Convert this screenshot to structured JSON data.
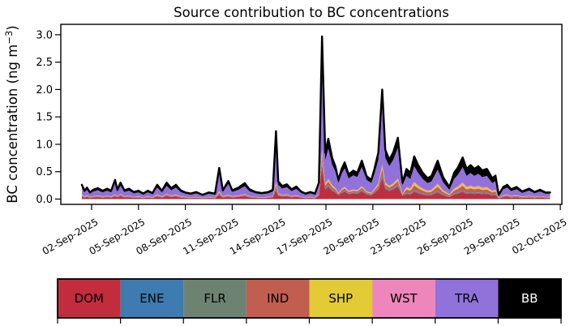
{
  "title": "Source contribution to BC concentrations",
  "axes": {
    "ylabel_pre": "BC concentration (ng m",
    "ylabel_sup": "−3",
    "ylabel_post": ")",
    "yticks": {
      "values": [
        0,
        0.5,
        1.0,
        1.5,
        2.0,
        2.5,
        3.0
      ],
      "labels": [
        "0.0",
        "0.5",
        "1.0",
        "1.5",
        "2.0",
        "2.5",
        "3.0"
      ]
    },
    "xticks": {
      "values": [
        2,
        5,
        8,
        11,
        14,
        17,
        20,
        23,
        26,
        29,
        32
      ],
      "labels": [
        "02-Sep-2025",
        "05-Sep-2025",
        "08-Sep-2025",
        "11-Sep-2025",
        "14-Sep-2025",
        "17-Sep-2025",
        "20-Sep-2025",
        "23-Sep-2025",
        "26-Sep-2025",
        "29-Sep-2025",
        "02-Oct-2025"
      ]
    }
  },
  "legend": {
    "items": [
      {
        "label": "DOM",
        "color": "#c22d3e",
        "text_color": "#000000"
      },
      {
        "label": "ENE",
        "color": "#3d7bb0",
        "text_color": "#000000"
      },
      {
        "label": "FLR",
        "color": "#6e8272",
        "text_color": "#000000"
      },
      {
        "label": "IND",
        "color": "#c25e50",
        "text_color": "#000000"
      },
      {
        "label": "SHP",
        "color": "#e2cb35",
        "text_color": "#000000"
      },
      {
        "label": "WST",
        "color": "#ef86bb",
        "text_color": "#000000"
      },
      {
        "label": "TRA",
        "color": "#9171da",
        "text_color": "#000000"
      },
      {
        "label": "BB",
        "color": "#000000",
        "text_color": "#ffffff"
      }
    ]
  },
  "chart_data": {
    "type": "area",
    "stacked": true,
    "title": "Source contribution to BC concentrations",
    "xlabel": "",
    "ylabel": "BC concentration (ng m−3)",
    "x_unit": "day number, 1 = 01-Sep-2025, 32 = 02-Oct-2025",
    "y_unit": "ng m-3",
    "xlim": [
      0.03,
      32.1
    ],
    "ylim": [
      -0.096,
      3.19
    ],
    "grid": false,
    "legend_position": "below, horizontal color strip",
    "series": [
      {
        "name": "DOM",
        "color": "#c22d3e"
      },
      {
        "name": "ENE",
        "color": "#3d7bb0"
      },
      {
        "name": "FLR",
        "color": "#6e8272"
      },
      {
        "name": "IND",
        "color": "#c25e50"
      },
      {
        "name": "SHP",
        "color": "#e2cb35"
      },
      {
        "name": "WST",
        "color": "#ef86bb"
      },
      {
        "name": "TRA",
        "color": "#9171da"
      },
      {
        "name": "BB",
        "color": "#000000"
      }
    ],
    "points_format": "[x_day, DOM, ENE, FLR, IND, SHP, WST, TRA, BB] (stacked bottom to top, values in ng m-3)",
    "points": [
      [
        1.38,
        0.047,
        0.008,
        0.003,
        0.014,
        0.008,
        0.005,
        0.127,
        0.049
      ],
      [
        1.55,
        0.027,
        0.005,
        0.002,
        0.008,
        0.005,
        0.003,
        0.073,
        0.029
      ],
      [
        1.7,
        0.038,
        0.006,
        0.002,
        0.012,
        0.006,
        0.004,
        0.102,
        0.04
      ],
      [
        1.9,
        0.022,
        0.004,
        0.001,
        0.007,
        0.004,
        0.002,
        0.058,
        0.023
      ],
      [
        2.1,
        0.031,
        0.005,
        0.002,
        0.009,
        0.005,
        0.003,
        0.083,
        0.032
      ],
      [
        2.4,
        0.036,
        0.006,
        0.002,
        0.011,
        0.006,
        0.004,
        0.097,
        0.038
      ],
      [
        2.7,
        0.027,
        0.005,
        0.002,
        0.008,
        0.005,
        0.003,
        0.073,
        0.029
      ],
      [
        3.0,
        0.034,
        0.006,
        0.002,
        0.01,
        0.006,
        0.003,
        0.093,
        0.036
      ],
      [
        3.25,
        0.027,
        0.005,
        0.002,
        0.008,
        0.005,
        0.003,
        0.073,
        0.029
      ],
      [
        3.5,
        0.046,
        0.009,
        0.003,
        0.016,
        0.009,
        0.005,
        0.205,
        0.058
      ],
      [
        3.65,
        0.031,
        0.005,
        0.002,
        0.009,
        0.005,
        0.003,
        0.083,
        0.032
      ],
      [
        3.85,
        0.054,
        0.009,
        0.003,
        0.017,
        0.009,
        0.005,
        0.146,
        0.057
      ],
      [
        4.1,
        0.029,
        0.005,
        0.002,
        0.009,
        0.005,
        0.003,
        0.078,
        0.03
      ],
      [
        4.4,
        0.034,
        0.006,
        0.002,
        0.01,
        0.006,
        0.003,
        0.093,
        0.036
      ],
      [
        4.7,
        0.023,
        0.004,
        0.001,
        0.007,
        0.004,
        0.002,
        0.063,
        0.025
      ],
      [
        5.0,
        0.027,
        0.005,
        0.002,
        0.008,
        0.005,
        0.003,
        0.073,
        0.029
      ],
      [
        5.3,
        0.018,
        0.003,
        0.001,
        0.006,
        0.003,
        0.002,
        0.049,
        0.019
      ],
      [
        5.6,
        0.027,
        0.005,
        0.002,
        0.008,
        0.005,
        0.003,
        0.073,
        0.029
      ],
      [
        5.9,
        0.02,
        0.003,
        0.001,
        0.006,
        0.003,
        0.002,
        0.054,
        0.021
      ],
      [
        6.2,
        0.047,
        0.008,
        0.003,
        0.014,
        0.008,
        0.005,
        0.127,
        0.049
      ],
      [
        6.5,
        0.027,
        0.005,
        0.002,
        0.008,
        0.005,
        0.003,
        0.073,
        0.029
      ],
      [
        6.8,
        0.054,
        0.009,
        0.003,
        0.017,
        0.009,
        0.005,
        0.146,
        0.057
      ],
      [
        7.1,
        0.036,
        0.006,
        0.002,
        0.011,
        0.006,
        0.004,
        0.097,
        0.038
      ],
      [
        7.4,
        0.047,
        0.008,
        0.003,
        0.014,
        0.008,
        0.005,
        0.127,
        0.049
      ],
      [
        7.7,
        0.029,
        0.005,
        0.002,
        0.009,
        0.005,
        0.003,
        0.078,
        0.03
      ],
      [
        8.0,
        0.022,
        0.004,
        0.001,
        0.007,
        0.004,
        0.002,
        0.058,
        0.023
      ],
      [
        8.35,
        0.018,
        0.003,
        0.001,
        0.006,
        0.003,
        0.002,
        0.049,
        0.019
      ],
      [
        8.7,
        0.023,
        0.004,
        0.001,
        0.007,
        0.004,
        0.002,
        0.063,
        0.025
      ],
      [
        9.1,
        0.014,
        0.002,
        0.001,
        0.004,
        0.002,
        0.001,
        0.04,
        0.015
      ],
      [
        9.5,
        0.022,
        0.004,
        0.001,
        0.007,
        0.004,
        0.002,
        0.058,
        0.023
      ],
      [
        9.9,
        0.018,
        0.003,
        0.001,
        0.006,
        0.003,
        0.002,
        0.049,
        0.019
      ],
      [
        10.17,
        0.074,
        0.014,
        0.005,
        0.026,
        0.014,
        0.009,
        0.334,
        0.094
      ],
      [
        10.4,
        0.029,
        0.005,
        0.002,
        0.009,
        0.005,
        0.003,
        0.078,
        0.03
      ],
      [
        10.75,
        0.043,
        0.008,
        0.003,
        0.015,
        0.008,
        0.005,
        0.194,
        0.054
      ],
      [
        11.0,
        0.029,
        0.005,
        0.002,
        0.009,
        0.005,
        0.003,
        0.078,
        0.03
      ],
      [
        11.4,
        0.038,
        0.006,
        0.002,
        0.012,
        0.006,
        0.004,
        0.102,
        0.04
      ],
      [
        11.8,
        0.052,
        0.009,
        0.003,
        0.016,
        0.009,
        0.005,
        0.141,
        0.055
      ],
      [
        12.1,
        0.032,
        0.005,
        0.002,
        0.01,
        0.005,
        0.003,
        0.088,
        0.034
      ],
      [
        12.5,
        0.023,
        0.004,
        0.001,
        0.007,
        0.004,
        0.002,
        0.063,
        0.025
      ],
      [
        12.9,
        0.02,
        0.003,
        0.001,
        0.006,
        0.003,
        0.002,
        0.054,
        0.021
      ],
      [
        13.3,
        0.023,
        0.004,
        0.001,
        0.007,
        0.004,
        0.002,
        0.063,
        0.025
      ],
      [
        13.6,
        0.031,
        0.005,
        0.002,
        0.009,
        0.005,
        0.003,
        0.083,
        0.032
      ],
      [
        13.8,
        0.161,
        0.031,
        0.01,
        0.056,
        0.031,
        0.019,
        0.728,
        0.205
      ],
      [
        13.95,
        0.058,
        0.01,
        0.003,
        0.018,
        0.01,
        0.006,
        0.156,
        0.061
      ],
      [
        14.2,
        0.043,
        0.007,
        0.002,
        0.013,
        0.007,
        0.004,
        0.117,
        0.046
      ],
      [
        14.5,
        0.049,
        0.008,
        0.003,
        0.015,
        0.008,
        0.005,
        0.131,
        0.051
      ],
      [
        14.8,
        0.032,
        0.005,
        0.002,
        0.01,
        0.005,
        0.003,
        0.088,
        0.034
      ],
      [
        15.1,
        0.041,
        0.007,
        0.002,
        0.013,
        0.007,
        0.004,
        0.112,
        0.044
      ],
      [
        15.4,
        0.025,
        0.004,
        0.001,
        0.008,
        0.004,
        0.003,
        0.068,
        0.027
      ],
      [
        15.7,
        0.018,
        0.003,
        0.001,
        0.006,
        0.003,
        0.002,
        0.049,
        0.019
      ],
      [
        16.0,
        0.023,
        0.004,
        0.001,
        0.007,
        0.004,
        0.002,
        0.063,
        0.025
      ],
      [
        16.3,
        0.018,
        0.003,
        0.001,
        0.006,
        0.003,
        0.002,
        0.049,
        0.019
      ],
      [
        16.55,
        0.06,
        0.008,
        0.002,
        0.018,
        0.008,
        0.005,
        0.15,
        0.048
      ],
      [
        16.75,
        0.6,
        0.05,
        0.015,
        0.14,
        0.06,
        0.04,
        1.72,
        0.345
      ],
      [
        16.95,
        0.17,
        0.021,
        0.007,
        0.051,
        0.024,
        0.015,
        0.425,
        0.137
      ],
      [
        17.15,
        0.22,
        0.028,
        0.009,
        0.066,
        0.031,
        0.02,
        0.55,
        0.177
      ],
      [
        17.4,
        0.15,
        0.019,
        0.006,
        0.045,
        0.021,
        0.014,
        0.375,
        0.121
      ],
      [
        17.6,
        0.12,
        0.015,
        0.005,
        0.036,
        0.017,
        0.011,
        0.3,
        0.097
      ],
      [
        17.8,
        0.07,
        0.009,
        0.003,
        0.021,
        0.01,
        0.006,
        0.175,
        0.056
      ],
      [
        18.0,
        0.11,
        0.014,
        0.004,
        0.033,
        0.015,
        0.01,
        0.275,
        0.089
      ],
      [
        18.2,
        0.134,
        0.017,
        0.005,
        0.04,
        0.019,
        0.012,
        0.335,
        0.108
      ],
      [
        18.45,
        0.09,
        0.011,
        0.004,
        0.027,
        0.013,
        0.008,
        0.225,
        0.072
      ],
      [
        18.75,
        0.104,
        0.013,
        0.004,
        0.031,
        0.015,
        0.009,
        0.26,
        0.084
      ],
      [
        19.0,
        0.096,
        0.012,
        0.004,
        0.029,
        0.013,
        0.009,
        0.24,
        0.077
      ],
      [
        19.3,
        0.14,
        0.018,
        0.006,
        0.042,
        0.02,
        0.013,
        0.35,
        0.113
      ],
      [
        19.6,
        0.084,
        0.011,
        0.003,
        0.025,
        0.012,
        0.008,
        0.21,
        0.068
      ],
      [
        19.9,
        0.07,
        0.009,
        0.003,
        0.021,
        0.01,
        0.006,
        0.175,
        0.056
      ],
      [
        20.1,
        0.11,
        0.014,
        0.004,
        0.033,
        0.015,
        0.01,
        0.275,
        0.089
      ],
      [
        20.35,
        0.17,
        0.021,
        0.007,
        0.051,
        0.024,
        0.015,
        0.425,
        0.137
      ],
      [
        20.6,
        0.38,
        0.04,
        0.012,
        0.12,
        0.05,
        0.033,
        1.05,
        0.315
      ],
      [
        20.8,
        0.18,
        0.023,
        0.007,
        0.054,
        0.025,
        0.016,
        0.45,
        0.145
      ],
      [
        21.05,
        0.144,
        0.018,
        0.006,
        0.043,
        0.02,
        0.013,
        0.36,
        0.116
      ],
      [
        21.3,
        0.17,
        0.021,
        0.007,
        0.051,
        0.024,
        0.015,
        0.425,
        0.137
      ],
      [
        21.6,
        0.224,
        0.028,
        0.009,
        0.067,
        0.031,
        0.02,
        0.56,
        0.18
      ],
      [
        21.9,
        0.06,
        0.008,
        0.002,
        0.018,
        0.008,
        0.005,
        0.15,
        0.048
      ],
      [
        22.15,
        0.094,
        0.015,
        0.005,
        0.063,
        0.03,
        0.017,
        0.2,
        0.127
      ],
      [
        22.4,
        0.082,
        0.013,
        0.004,
        0.055,
        0.026,
        0.014,
        0.174,
        0.11
      ],
      [
        22.65,
        0.133,
        0.022,
        0.007,
        0.09,
        0.043,
        0.023,
        0.283,
        0.179
      ],
      [
        22.9,
        0.105,
        0.017,
        0.006,
        0.071,
        0.034,
        0.019,
        0.225,
        0.143
      ],
      [
        23.2,
        0.082,
        0.013,
        0.004,
        0.055,
        0.026,
        0.014,
        0.174,
        0.11
      ],
      [
        23.5,
        0.065,
        0.011,
        0.003,
        0.044,
        0.021,
        0.011,
        0.138,
        0.087
      ],
      [
        23.75,
        0.071,
        0.012,
        0.004,
        0.048,
        0.023,
        0.013,
        0.152,
        0.097
      ],
      [
        24.15,
        0.119,
        0.02,
        0.006,
        0.081,
        0.039,
        0.021,
        0.254,
        0.161
      ],
      [
        24.5,
        0.068,
        0.011,
        0.004,
        0.046,
        0.022,
        0.012,
        0.145,
        0.092
      ],
      [
        24.9,
        0.037,
        0.006,
        0.002,
        0.025,
        0.012,
        0.007,
        0.08,
        0.051
      ],
      [
        25.2,
        0.082,
        0.013,
        0.004,
        0.055,
        0.026,
        0.014,
        0.174,
        0.11
      ],
      [
        25.45,
        0.099,
        0.016,
        0.005,
        0.067,
        0.032,
        0.017,
        0.21,
        0.133
      ],
      [
        25.75,
        0.129,
        0.021,
        0.007,
        0.087,
        0.042,
        0.023,
        0.276,
        0.175
      ],
      [
        26.0,
        0.094,
        0.015,
        0.005,
        0.063,
        0.03,
        0.017,
        0.2,
        0.127
      ],
      [
        26.25,
        0.105,
        0.017,
        0.006,
        0.071,
        0.034,
        0.019,
        0.225,
        0.143
      ],
      [
        26.5,
        0.094,
        0.015,
        0.005,
        0.063,
        0.03,
        0.017,
        0.2,
        0.127
      ],
      [
        26.75,
        0.102,
        0.017,
        0.005,
        0.069,
        0.033,
        0.018,
        0.218,
        0.138
      ],
      [
        27.0,
        0.088,
        0.015,
        0.005,
        0.06,
        0.029,
        0.016,
        0.189,
        0.12
      ],
      [
        27.3,
        0.094,
        0.015,
        0.005,
        0.063,
        0.03,
        0.017,
        0.2,
        0.127
      ],
      [
        27.65,
        0.065,
        0.011,
        0.003,
        0.044,
        0.021,
        0.011,
        0.138,
        0.087
      ],
      [
        27.85,
        0.073,
        0.012,
        0.004,
        0.049,
        0.024,
        0.013,
        0.156,
        0.099
      ],
      [
        28.05,
        0.012,
        0.002,
        0.001,
        0.006,
        0.003,
        0.002,
        0.038,
        0.015
      ],
      [
        28.35,
        0.033,
        0.007,
        0.002,
        0.018,
        0.009,
        0.004,
        0.106,
        0.042
      ],
      [
        28.6,
        0.039,
        0.008,
        0.003,
        0.021,
        0.01,
        0.005,
        0.125,
        0.049
      ],
      [
        28.85,
        0.027,
        0.005,
        0.002,
        0.014,
        0.007,
        0.004,
        0.086,
        0.034
      ],
      [
        29.2,
        0.033,
        0.007,
        0.002,
        0.018,
        0.009,
        0.004,
        0.106,
        0.042
      ],
      [
        29.55,
        0.021,
        0.004,
        0.001,
        0.011,
        0.006,
        0.003,
        0.067,
        0.027
      ],
      [
        30.0,
        0.029,
        0.006,
        0.002,
        0.015,
        0.008,
        0.004,
        0.091,
        0.036
      ],
      [
        30.35,
        0.02,
        0.004,
        0.001,
        0.01,
        0.005,
        0.003,
        0.062,
        0.025
      ],
      [
        30.7,
        0.026,
        0.005,
        0.002,
        0.014,
        0.007,
        0.003,
        0.082,
        0.032
      ],
      [
        31.05,
        0.018,
        0.004,
        0.001,
        0.01,
        0.005,
        0.002,
        0.058,
        0.023
      ],
      [
        31.35,
        0.018,
        0.004,
        0.001,
        0.01,
        0.005,
        0.002,
        0.058,
        0.023
      ]
    ]
  }
}
